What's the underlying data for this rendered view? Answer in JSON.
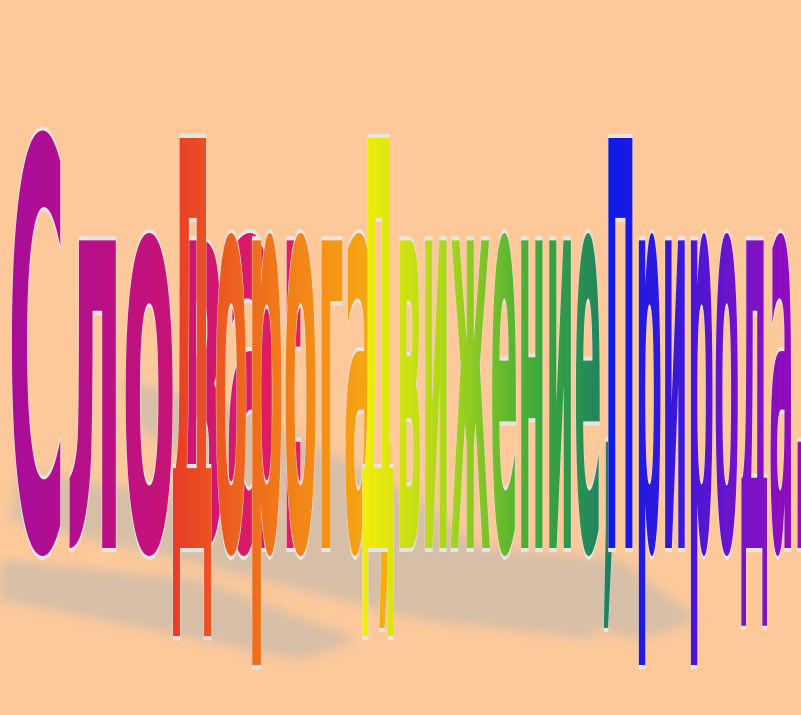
{
  "slide": {
    "background": "#fdc99a",
    "words": [
      {
        "text": "Слова:",
        "colors": [
          "#a80d9a",
          "#c4127a",
          "#e8205a"
        ]
      },
      {
        "text": "Дорога,",
        "colors": [
          "#e93a2a",
          "#ee6a1c",
          "#f59316",
          "#f4b40e"
        ]
      },
      {
        "text": "Движение,",
        "colors": [
          "#f7ee0a",
          "#a8d41c",
          "#3aa83a",
          "#1a7a6a"
        ]
      },
      {
        "text": "Природа.",
        "colors": [
          "#0a1be8",
          "#3a18d8",
          "#7a12c8",
          "#9a0ab8"
        ]
      }
    ]
  }
}
